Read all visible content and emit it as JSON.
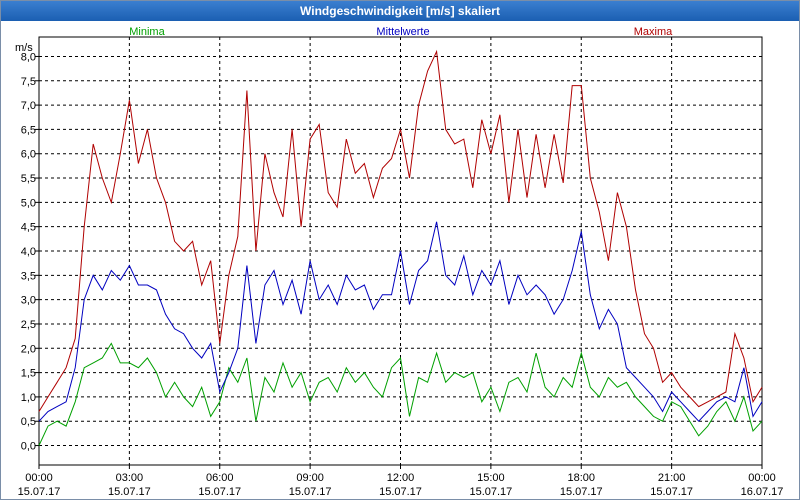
{
  "window": {
    "title": "Windgeschwindigkeit [m/s] skaliert"
  },
  "chart_data": {
    "type": "line",
    "title": "Windgeschwindigkeit [m/s] skaliert",
    "ylabel": "m/s",
    "xlabel": "",
    "ylim": [
      -0.4,
      8.4
    ],
    "xlim": [
      0,
      24
    ],
    "grid": true,
    "y_ticks": [
      "0,0",
      "0,5",
      "1,0",
      "1,5",
      "2,0",
      "2,5",
      "3,0",
      "3,5",
      "4,0",
      "4,5",
      "5,0",
      "5,5",
      "6,0",
      "6,5",
      "7,0",
      "7,5",
      "8,0"
    ],
    "x_ticks": [
      {
        "time": "00:00",
        "date": "15.07.17"
      },
      {
        "time": "03:00",
        "date": "15.07.17"
      },
      {
        "time": "06:00",
        "date": "15.07.17"
      },
      {
        "time": "09:00",
        "date": "15.07.17"
      },
      {
        "time": "12:00",
        "date": "15.07.17"
      },
      {
        "time": "15:00",
        "date": "15.07.17"
      },
      {
        "time": "18:00",
        "date": "15.07.17"
      },
      {
        "time": "21:00",
        "date": "15.07.17"
      },
      {
        "time": "00:00",
        "date": "16.07.17"
      }
    ],
    "series": [
      {
        "name": "Minima",
        "color": "#00a000",
        "x": [
          0,
          0.3,
          0.6,
          0.9,
          1.2,
          1.5,
          1.8,
          2.1,
          2.4,
          2.7,
          3.0,
          3.3,
          3.6,
          3.9,
          4.2,
          4.5,
          4.8,
          5.1,
          5.4,
          5.7,
          6.0,
          6.3,
          6.6,
          6.9,
          7.2,
          7.5,
          7.8,
          8.1,
          8.4,
          8.7,
          9.0,
          9.3,
          9.6,
          9.9,
          10.2,
          10.5,
          10.8,
          11.1,
          11.4,
          11.7,
          12.0,
          12.3,
          12.6,
          12.9,
          13.2,
          13.5,
          13.8,
          14.1,
          14.4,
          14.7,
          15.0,
          15.3,
          15.6,
          15.9,
          16.2,
          16.5,
          16.8,
          17.1,
          17.4,
          17.7,
          18.0,
          18.3,
          18.6,
          18.9,
          19.2,
          19.5,
          19.8,
          20.1,
          20.4,
          20.7,
          21.0,
          21.3,
          21.6,
          21.9,
          22.2,
          22.5,
          22.8,
          23.1,
          23.4,
          23.7,
          24.0
        ],
        "values": [
          0.0,
          0.4,
          0.5,
          0.4,
          0.9,
          1.6,
          1.7,
          1.8,
          2.1,
          1.7,
          1.7,
          1.6,
          1.8,
          1.5,
          1.0,
          1.3,
          1.0,
          0.8,
          1.2,
          0.6,
          0.9,
          1.6,
          1.3,
          1.8,
          0.5,
          1.4,
          1.1,
          1.7,
          1.2,
          1.5,
          0.9,
          1.3,
          1.4,
          1.1,
          1.6,
          1.3,
          1.5,
          1.2,
          1.0,
          1.6,
          1.8,
          0.6,
          1.4,
          1.3,
          1.9,
          1.3,
          1.5,
          1.4,
          1.5,
          0.9,
          1.2,
          0.7,
          1.3,
          1.4,
          1.1,
          1.9,
          1.2,
          1.0,
          1.4,
          1.2,
          1.9,
          1.2,
          1.0,
          1.4,
          1.2,
          1.3,
          1.0,
          0.8,
          0.6,
          0.5,
          0.9,
          0.8,
          0.5,
          0.2,
          0.4,
          0.7,
          0.9,
          0.5,
          1.0,
          0.3,
          0.5
        ]
      },
      {
        "name": "Mittelwerte",
        "color": "#0000c0",
        "x": [
          0,
          0.3,
          0.6,
          0.9,
          1.2,
          1.5,
          1.8,
          2.1,
          2.4,
          2.7,
          3.0,
          3.3,
          3.6,
          3.9,
          4.2,
          4.5,
          4.8,
          5.1,
          5.4,
          5.7,
          6.0,
          6.3,
          6.6,
          6.9,
          7.2,
          7.5,
          7.8,
          8.1,
          8.4,
          8.7,
          9.0,
          9.3,
          9.6,
          9.9,
          10.2,
          10.5,
          10.8,
          11.1,
          11.4,
          11.7,
          12.0,
          12.3,
          12.6,
          12.9,
          13.2,
          13.5,
          13.8,
          14.1,
          14.4,
          14.7,
          15.0,
          15.3,
          15.6,
          15.9,
          16.2,
          16.5,
          16.8,
          17.1,
          17.4,
          17.7,
          18.0,
          18.3,
          18.6,
          18.9,
          19.2,
          19.5,
          19.8,
          20.1,
          20.4,
          20.7,
          21.0,
          21.3,
          21.6,
          21.9,
          22.2,
          22.5,
          22.8,
          23.1,
          23.4,
          23.7,
          24.0
        ],
        "values": [
          0.5,
          0.7,
          0.8,
          0.9,
          1.6,
          3.0,
          3.5,
          3.2,
          3.6,
          3.4,
          3.7,
          3.3,
          3.3,
          3.2,
          2.7,
          2.4,
          2.3,
          2.0,
          1.8,
          2.1,
          1.1,
          1.5,
          2.0,
          3.7,
          2.1,
          3.3,
          3.6,
          2.9,
          3.4,
          2.7,
          3.8,
          3.0,
          3.3,
          2.9,
          3.5,
          3.2,
          3.3,
          2.8,
          3.1,
          3.1,
          4.0,
          2.9,
          3.6,
          3.8,
          4.6,
          3.5,
          3.3,
          3.9,
          3.1,
          3.6,
          3.3,
          3.8,
          2.9,
          3.5,
          3.1,
          3.3,
          3.1,
          2.7,
          3.0,
          3.6,
          4.4,
          3.1,
          2.4,
          2.8,
          2.5,
          1.6,
          1.4,
          1.2,
          1.0,
          0.7,
          1.1,
          0.9,
          0.7,
          0.5,
          0.7,
          0.9,
          1.0,
          0.9,
          1.6,
          0.6,
          0.9
        ]
      },
      {
        "name": "Maxima",
        "color": "#b00000",
        "x": [
          0,
          0.3,
          0.6,
          0.9,
          1.2,
          1.5,
          1.8,
          2.1,
          2.4,
          2.7,
          3.0,
          3.3,
          3.6,
          3.9,
          4.2,
          4.5,
          4.8,
          5.1,
          5.4,
          5.7,
          6.0,
          6.3,
          6.6,
          6.9,
          7.2,
          7.5,
          7.8,
          8.1,
          8.4,
          8.7,
          9.0,
          9.3,
          9.6,
          9.9,
          10.2,
          10.5,
          10.8,
          11.1,
          11.4,
          11.7,
          12.0,
          12.3,
          12.6,
          12.9,
          13.2,
          13.5,
          13.8,
          14.1,
          14.4,
          14.7,
          15.0,
          15.3,
          15.6,
          15.9,
          16.2,
          16.5,
          16.8,
          17.1,
          17.4,
          17.7,
          18.0,
          18.3,
          18.6,
          18.9,
          19.2,
          19.5,
          19.8,
          20.1,
          20.4,
          20.7,
          21.0,
          21.3,
          21.6,
          21.9,
          22.2,
          22.5,
          22.8,
          23.1,
          23.4,
          23.7,
          24.0
        ],
        "values": [
          0.7,
          1.0,
          1.3,
          1.6,
          2.2,
          4.5,
          6.2,
          5.5,
          5.0,
          6.0,
          7.1,
          5.8,
          6.5,
          5.5,
          5.0,
          4.2,
          4.0,
          4.2,
          3.3,
          3.8,
          2.1,
          3.5,
          4.3,
          7.3,
          4.0,
          6.0,
          5.2,
          4.7,
          6.5,
          4.5,
          6.3,
          6.6,
          5.2,
          4.9,
          6.3,
          5.6,
          5.8,
          5.1,
          5.7,
          5.9,
          6.5,
          5.5,
          7.0,
          7.7,
          8.1,
          6.5,
          6.2,
          6.3,
          5.3,
          6.7,
          6.0,
          6.8,
          5.0,
          6.5,
          5.1,
          6.4,
          5.3,
          6.4,
          5.4,
          7.4,
          7.4,
          5.5,
          4.8,
          3.8,
          5.2,
          4.5,
          3.2,
          2.3,
          2.0,
          1.3,
          1.5,
          1.2,
          1.0,
          0.8,
          0.9,
          1.0,
          1.1,
          2.3,
          1.8,
          0.9,
          1.2
        ]
      }
    ]
  }
}
